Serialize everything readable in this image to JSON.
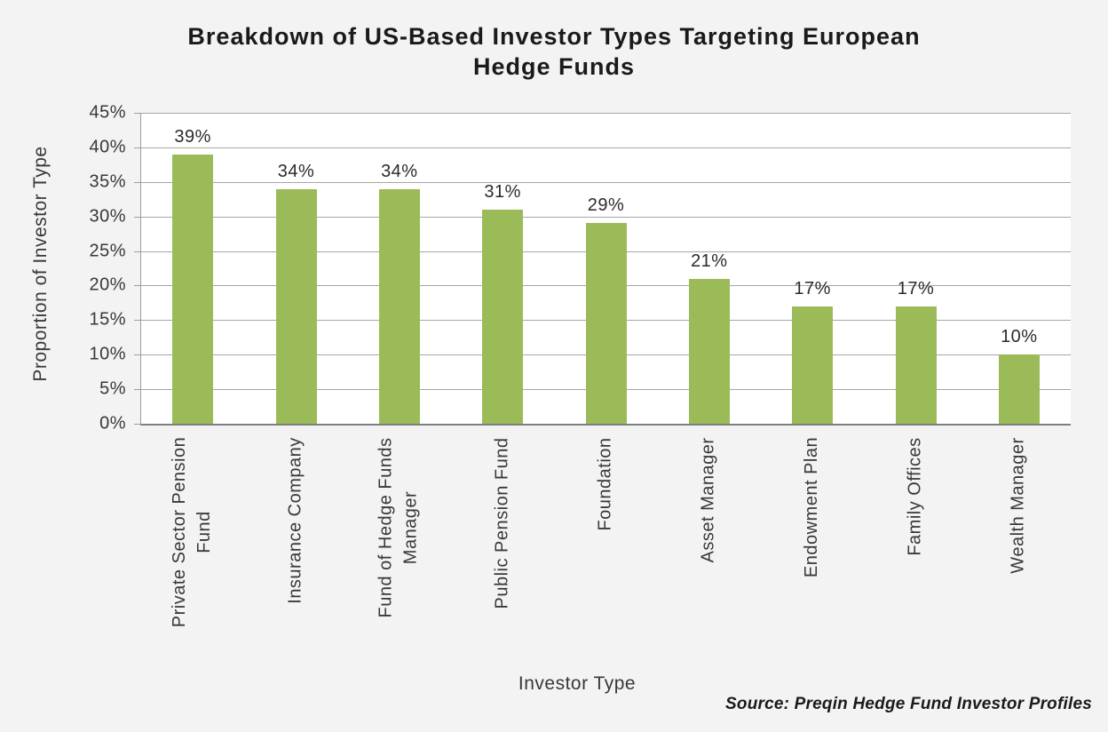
{
  "chart": {
    "title_line1": "Breakdown of US-Based Investor Types Targeting European",
    "title_line2": "Hedge Funds",
    "y_axis_label": "Proportion of Investor Type",
    "x_axis_label": "Investor Type",
    "source": "Source: Preqin Hedge Fund Investor Profiles"
  },
  "chart_data": {
    "type": "bar",
    "title": "Breakdown of US-Based Investor Types Targeting European Hedge Funds",
    "xlabel": "Investor Type",
    "ylabel": "Proportion of Investor Type",
    "categories": [
      "Private Sector Pension Fund",
      "Insurance Company",
      "Fund of Hedge Funds Manager",
      "Public Pension Fund",
      "Foundation",
      "Asset Manager",
      "Endowment Plan",
      "Family Offices",
      "Wealth Manager"
    ],
    "categories_display": [
      "Private Sector Pension\nFund",
      "Insurance Company",
      "Fund of Hedge Funds\nManager",
      "Public Pension Fund",
      "Foundation",
      "Asset Manager",
      "Endowment Plan",
      "Family Offices",
      "Wealth Manager"
    ],
    "values": [
      39,
      34,
      34,
      31,
      29,
      21,
      17,
      17,
      10
    ],
    "value_labels": [
      "39%",
      "34%",
      "34%",
      "31%",
      "29%",
      "21%",
      "17%",
      "17%",
      "10%"
    ],
    "y_ticks": [
      0,
      5,
      10,
      15,
      20,
      25,
      30,
      35,
      40,
      45
    ],
    "y_tick_labels": [
      "0%",
      "5%",
      "10%",
      "15%",
      "20%",
      "25%",
      "30%",
      "35%",
      "40%",
      "45%"
    ],
    "ylim": [
      0,
      45
    ],
    "grid": true,
    "legend": false,
    "source": "Source: Preqin Hedge Fund Investor Profiles",
    "colors": {
      "bar": "#9BBB59",
      "gridline": "#A6A6A6",
      "axis": "#7F7F7F",
      "background": "#F3F3F3",
      "plot_background": "#FFFFFF",
      "text": "#383838",
      "title_text": "#1A1A1A"
    }
  }
}
